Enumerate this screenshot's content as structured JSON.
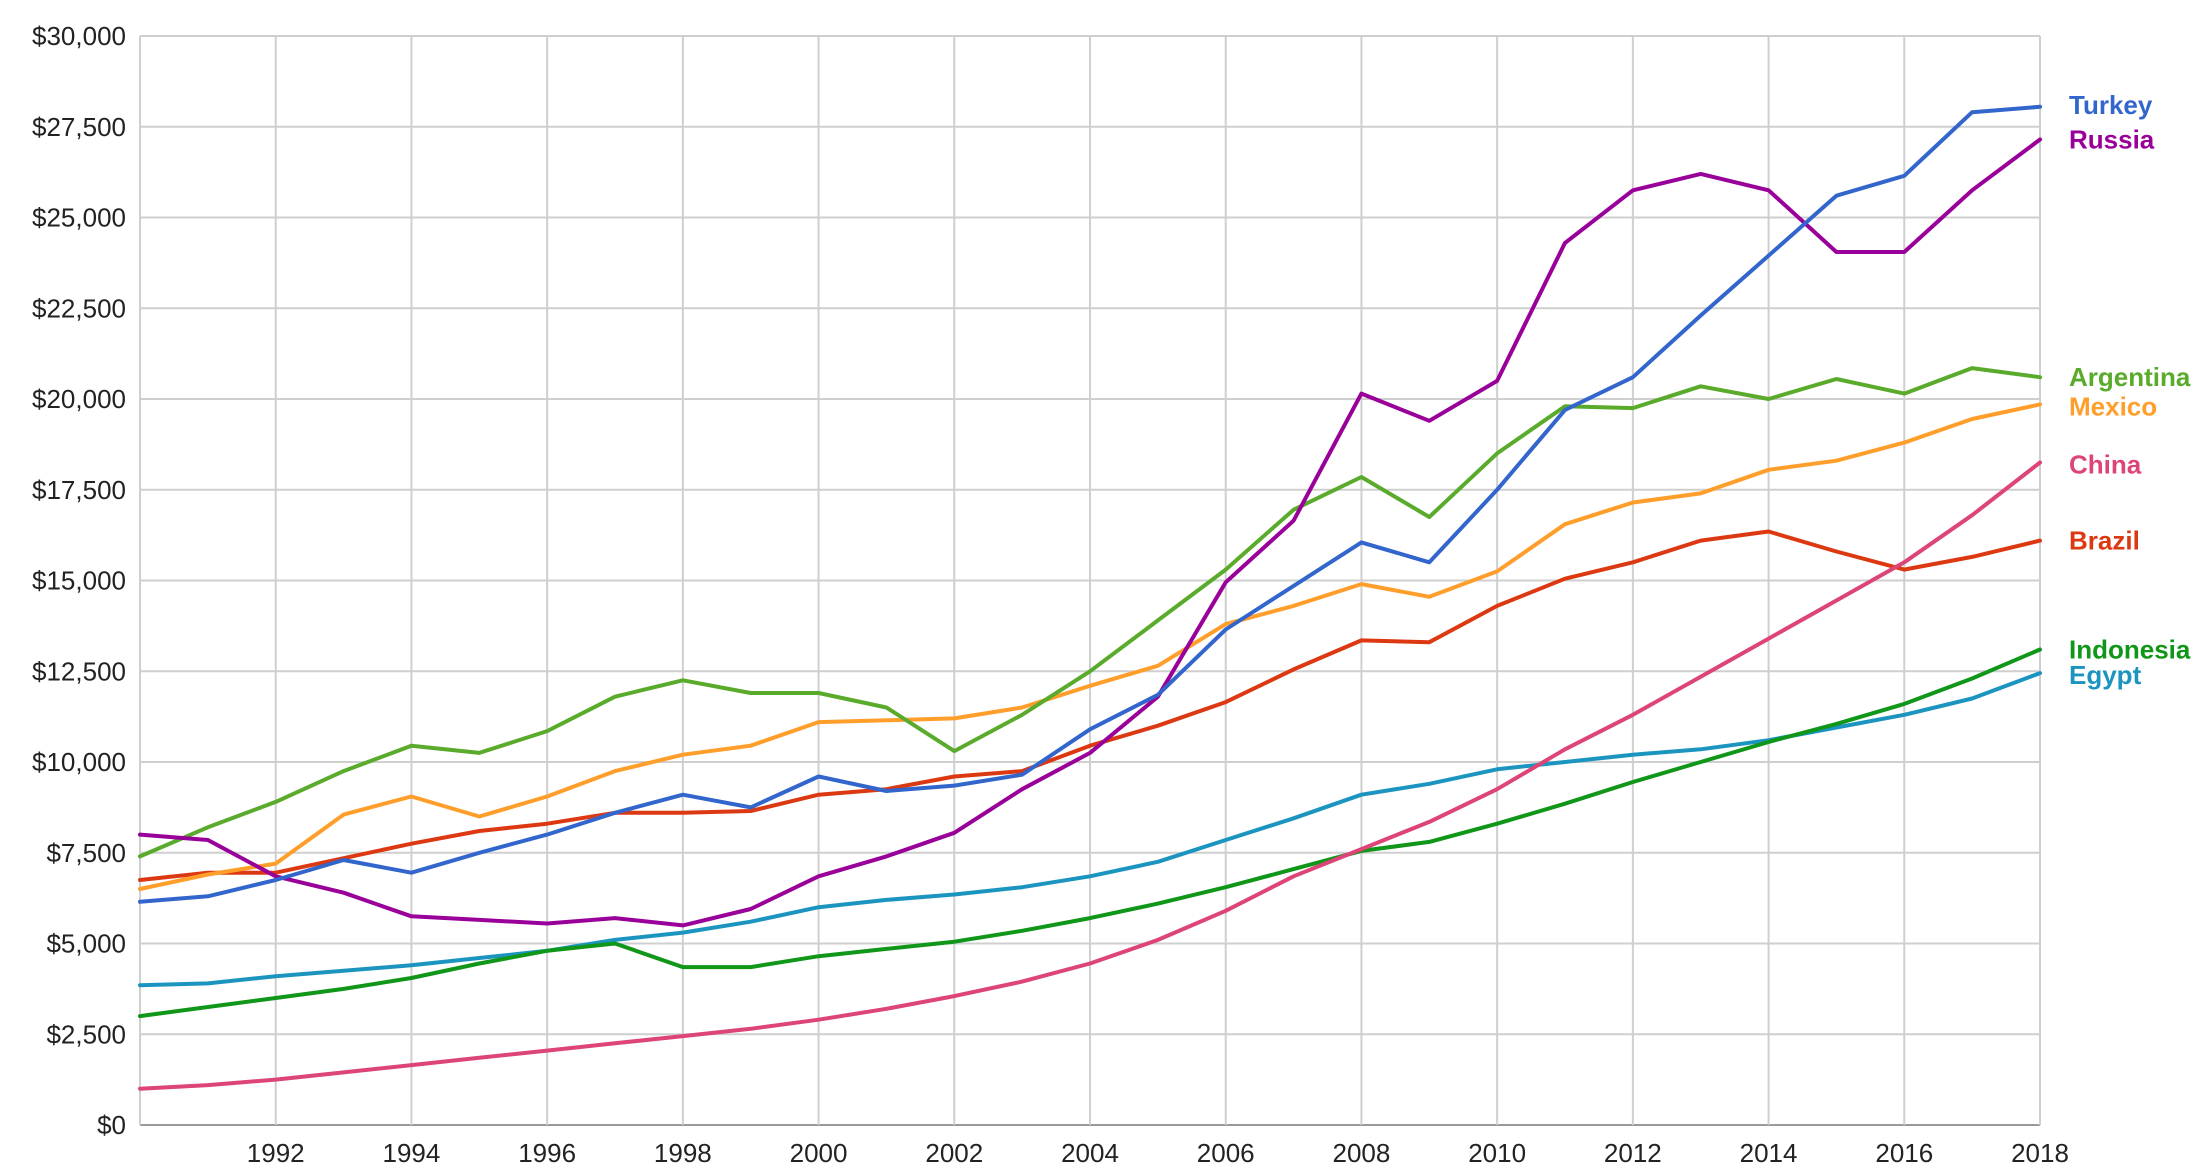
{
  "chart_data": {
    "type": "line",
    "title": "",
    "xlabel": "",
    "ylabel": "",
    "x": [
      1990,
      1991,
      1992,
      1993,
      1994,
      1995,
      1996,
      1997,
      1998,
      1999,
      2000,
      2001,
      2002,
      2003,
      2004,
      2005,
      2006,
      2007,
      2008,
      2009,
      2010,
      2011,
      2012,
      2013,
      2014,
      2015,
      2016,
      2017,
      2018
    ],
    "xlim": [
      1990,
      2018
    ],
    "ylim": [
      0,
      30000
    ],
    "x_ticks": [
      1992,
      1994,
      1996,
      1998,
      2000,
      2002,
      2004,
      2006,
      2008,
      2010,
      2012,
      2014,
      2016,
      2018
    ],
    "x_tick_labels": [
      "1992",
      "1994",
      "1996",
      "1998",
      "2000",
      "2002",
      "2004",
      "2006",
      "2008",
      "2010",
      "2012",
      "2014",
      "2016",
      "2018"
    ],
    "y_ticks": [
      0,
      2500,
      5000,
      7500,
      10000,
      12500,
      15000,
      17500,
      20000,
      22500,
      25000,
      27500,
      30000
    ],
    "y_tick_labels": [
      "$0",
      "$2,500",
      "$5,000",
      "$7,500",
      "$10,000",
      "$12,500",
      "$15,000",
      "$17,500",
      "$20,000",
      "$22,500",
      "$25,000",
      "$27,500",
      "$30,000"
    ],
    "grid": true,
    "legend": "inline-right",
    "series": [
      {
        "name": "Turkey",
        "color": "#3366cc",
        "label_y": 28100,
        "values": [
          6150,
          6300,
          6750,
          7300,
          6950,
          7500,
          8000,
          8600,
          9100,
          8750,
          9600,
          9200,
          9350,
          9650,
          10900,
          11850,
          13650,
          14850,
          16050,
          15500,
          17500,
          19700,
          20600,
          22300,
          23950,
          25600,
          26150,
          27900,
          28050
        ]
      },
      {
        "name": "Russia",
        "color": "#990099",
        "label_y": 27150,
        "values": [
          8000,
          7850,
          6850,
          6400,
          5750,
          5650,
          5550,
          5700,
          5500,
          5950,
          6850,
          7400,
          8050,
          9250,
          10250,
          11800,
          14950,
          16650,
          20150,
          19400,
          20500,
          24300,
          25750,
          26200,
          25750,
          24050,
          24050,
          25750,
          27150
        ]
      },
      {
        "name": "Argentina",
        "color": "#5aab2b",
        "label_y": 20600,
        "values": [
          7400,
          8200,
          8900,
          9750,
          10450,
          10250,
          10850,
          11800,
          12250,
          11900,
          11900,
          11500,
          10300,
          11300,
          12500,
          13900,
          15300,
          16950,
          17850,
          16750,
          18500,
          19800,
          19750,
          20350,
          20000,
          20550,
          20150,
          20850,
          20600
        ]
      },
      {
        "name": "Mexico",
        "color": "#ff9e2b",
        "label_y": 19800,
        "values": [
          6500,
          6900,
          7200,
          8550,
          9050,
          8500,
          9050,
          9750,
          10200,
          10450,
          11100,
          11150,
          11200,
          11500,
          12100,
          12650,
          13800,
          14300,
          14900,
          14550,
          15250,
          16550,
          17150,
          17400,
          18050,
          18300,
          18800,
          19450,
          19850
        ]
      },
      {
        "name": "China",
        "color": "#dd4477",
        "label_y": 18200,
        "values": [
          1000,
          1100,
          1250,
          1450,
          1650,
          1850,
          2050,
          2250,
          2450,
          2650,
          2900,
          3200,
          3550,
          3950,
          4450,
          5100,
          5900,
          6850,
          7600,
          8350,
          9250,
          10350,
          11300,
          12350,
          13400,
          14450,
          15500,
          16800,
          18250
        ]
      },
      {
        "name": "Brazil",
        "color": "#dc3912",
        "label_y": 16100,
        "values": [
          6750,
          6950,
          6950,
          7350,
          7750,
          8100,
          8300,
          8600,
          8600,
          8650,
          9100,
          9250,
          9600,
          9750,
          10450,
          11000,
          11650,
          12550,
          13350,
          13300,
          14300,
          15050,
          15500,
          16100,
          16350,
          15800,
          15300,
          15650,
          16100
        ]
      },
      {
        "name": "Indonesia",
        "color": "#109618",
        "label_y": 13100,
        "values": [
          3000,
          3250,
          3500,
          3750,
          4050,
          4450,
          4800,
          5000,
          4350,
          4350,
          4650,
          4850,
          5050,
          5350,
          5700,
          6100,
          6550,
          7050,
          7550,
          7800,
          8300,
          8850,
          9450,
          10000,
          10550,
          11050,
          11600,
          12300,
          13100
        ]
      },
      {
        "name": "Egypt",
        "color": "#1b95c0",
        "label_y": 12400,
        "values": [
          3850,
          3900,
          4100,
          4250,
          4400,
          4600,
          4800,
          5100,
          5300,
          5600,
          6000,
          6200,
          6350,
          6550,
          6850,
          7250,
          7850,
          8450,
          9100,
          9400,
          9800,
          10000,
          10200,
          10350,
          10600,
          10950,
          11300,
          11750,
          12450
        ]
      }
    ]
  }
}
